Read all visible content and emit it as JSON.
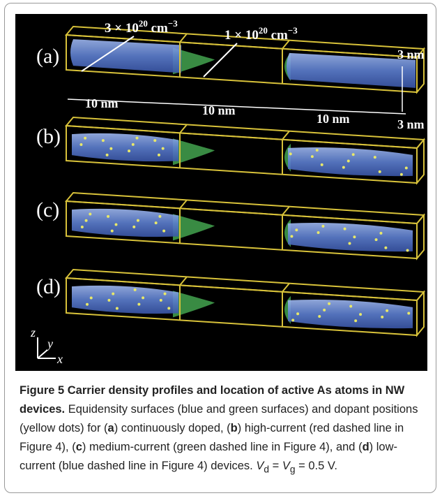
{
  "figure": {
    "panels": [
      "(a)",
      "(b)",
      "(c)",
      "(d)"
    ],
    "annotations": {
      "high_density": {
        "base": "3 × 10",
        "exp": "20",
        "unit": " cm",
        "unit_exp": "−3"
      },
      "low_density": {
        "base": "1 × 10",
        "exp": "20",
        "unit": " cm",
        "unit_exp": "−3"
      },
      "height": "3 nm",
      "width": "3 nm",
      "lengths": [
        "10 nm",
        "10 nm",
        "10 nm"
      ]
    },
    "axes": [
      "z",
      "y",
      "x"
    ]
  },
  "caption": {
    "title": "Figure 5 Carrier density profiles and location of active As atoms in NW devices.",
    "text": [
      " Equidensity surfaces (blue and green surfaces) and dopant positions (yellow dots) for (",
      "a",
      ") continuously doped, (",
      "b",
      ") high-current (red dashed line in Figure 4), (",
      "c",
      ") medium-current (green dashed line in Figure 4), and (",
      "d",
      ") low-current (blue dashed line in Figure 4) devices. ",
      "V",
      "d",
      " = ",
      "V",
      "g",
      " = 0.5 V."
    ]
  }
}
